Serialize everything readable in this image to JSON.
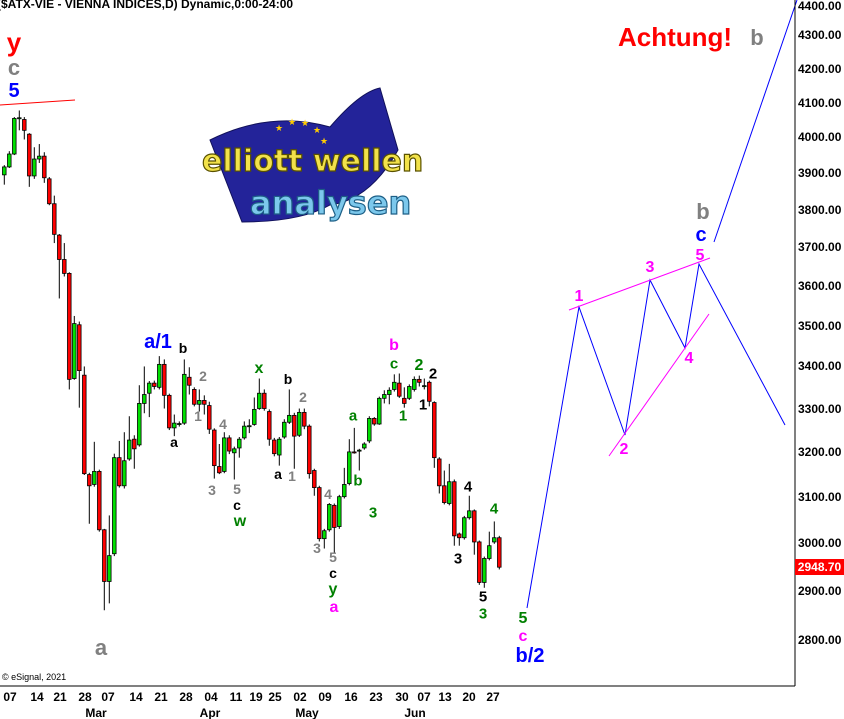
{
  "header": {
    "title": "($ATX-VIE - VIENNA INDICES,D) Dynamic,0:00-24:00"
  },
  "footer": {
    "copyright": "© eSignal, 2021"
  },
  "logo": {
    "line1": "elliott wellen",
    "line2": "analysen"
  },
  "chart_data": {
    "type": "candlestick",
    "title": "($ATX-VIE - VIENNA INDICES,D) Dynamic,0:00-24:00",
    "yscale": "log",
    "ylim": [
      2720,
      4400
    ],
    "grid": false,
    "y_ticks": [
      "4400.00",
      "4300.00",
      "4200.00",
      "4100.00",
      "4000.00",
      "3900.00",
      "3800.00",
      "3700.00",
      "3600.00",
      "3500.00",
      "3400.00",
      "3300.00",
      "3200.00",
      "3100.00",
      "3000.00",
      "2900.00",
      "2800.00"
    ],
    "x_ticks": [
      "07",
      "14",
      "21",
      "28",
      "07",
      "14",
      "21",
      "28",
      "04",
      "11",
      "19",
      "25",
      "02",
      "09",
      "16",
      "23",
      "30",
      "07",
      "13",
      "20",
      "27"
    ],
    "months": [
      "Mar",
      "Apr",
      "May",
      "Jun"
    ],
    "last_price": "2948.70",
    "colors": {
      "up": "#00e000",
      "down": "#ff0000",
      "projection": "#0000ff",
      "channel": "#ff00ff",
      "trendline": "#ff0000",
      "last_price_bg": "#ff0000"
    },
    "candles_ohlc": [
      [
        3895,
        3922,
        3868,
        3917
      ],
      [
        3917,
        3961,
        3914,
        3953
      ],
      [
        3953,
        4058,
        3950,
        4054
      ],
      [
        4054,
        4077,
        4020,
        4056
      ],
      [
        4051,
        4058,
        3994,
        4020
      ],
      [
        4009,
        4012,
        3862,
        3892
      ],
      [
        3892,
        3972,
        3884,
        3939
      ],
      [
        3939,
        3981,
        3928,
        3947
      ],
      [
        3947,
        3958,
        3873,
        3887
      ],
      [
        3884,
        3889,
        3812,
        3816
      ],
      [
        3816,
        3838,
        3711,
        3734
      ],
      [
        3732,
        3735,
        3568,
        3668
      ],
      [
        3668,
        3711,
        3624,
        3632
      ],
      [
        3632,
        3635,
        3345,
        3369
      ],
      [
        3371,
        3524,
        3368,
        3505
      ],
      [
        3502,
        3510,
        3302,
        3390
      ],
      [
        3379,
        3400,
        3148,
        3151
      ],
      [
        3149,
        3153,
        3041,
        3124
      ],
      [
        3127,
        3223,
        3122,
        3156
      ],
      [
        3156,
        3160,
        3024,
        3028
      ],
      [
        3028,
        3030,
        2860,
        2919
      ],
      [
        2919,
        3059,
        2874,
        2973
      ],
      [
        2977,
        3196,
        2972,
        3187
      ],
      [
        3187,
        3225,
        3120,
        3124
      ],
      [
        3124,
        3245,
        3118,
        3180
      ],
      [
        3184,
        3282,
        3180,
        3227
      ],
      [
        3229,
        3238,
        3162,
        3207
      ],
      [
        3216,
        3355,
        3212,
        3312
      ],
      [
        3312,
        3400,
        3289,
        3333
      ],
      [
        3336,
        3365,
        3280,
        3360
      ],
      [
        3360,
        3366,
        3345,
        3352
      ],
      [
        3350,
        3425,
        3345,
        3405
      ],
      [
        3405,
        3417,
        3300,
        3331
      ],
      [
        3331,
        3335,
        3250,
        3255
      ],
      [
        3255,
        3286,
        3236,
        3266
      ],
      [
        3264,
        3270,
        3258,
        3265
      ],
      [
        3266,
        3417,
        3262,
        3381
      ],
      [
        3374,
        3398,
        3333,
        3355
      ],
      [
        3345,
        3350,
        3305,
        3310
      ],
      [
        3310,
        3345,
        3293,
        3319
      ],
      [
        3319,
        3331,
        3286,
        3310
      ],
      [
        3307,
        3316,
        3241,
        3252
      ],
      [
        3250,
        3254,
        3140,
        3169
      ],
      [
        3167,
        3218,
        3150,
        3153
      ],
      [
        3156,
        3245,
        3152,
        3232
      ],
      [
        3232,
        3238,
        3195,
        3202
      ],
      [
        3198,
        3212,
        3138,
        3207
      ],
      [
        3209,
        3234,
        3187,
        3229
      ],
      [
        3232,
        3270,
        3228,
        3259
      ],
      [
        3259,
        3275,
        3243,
        3260
      ],
      [
        3263,
        3326,
        3260,
        3298
      ],
      [
        3300,
        3371,
        3297,
        3336
      ],
      [
        3336,
        3345,
        3295,
        3300
      ],
      [
        3293,
        3298,
        3214,
        3229
      ],
      [
        3227,
        3232,
        3190,
        3196
      ],
      [
        3193,
        3234,
        3169,
        3229
      ],
      [
        3234,
        3275,
        3230,
        3268
      ],
      [
        3268,
        3345,
        3264,
        3284
      ],
      [
        3284,
        3290,
        3162,
        3236
      ],
      [
        3238,
        3300,
        3234,
        3291
      ],
      [
        3291,
        3300,
        3252,
        3259
      ],
      [
        3259,
        3263,
        3140,
        3151
      ],
      [
        3158,
        3162,
        3102,
        3120
      ],
      [
        3120,
        3124,
        3003,
        3009
      ],
      [
        3009,
        3030,
        2988,
        3026
      ],
      [
        3028,
        3086,
        3024,
        3083
      ],
      [
        3081,
        3085,
        2979,
        3033
      ],
      [
        3035,
        3104,
        3030,
        3100
      ],
      [
        3100,
        3164,
        3096,
        3127
      ],
      [
        3129,
        3229,
        3125,
        3200
      ],
      [
        3200,
        3255,
        3196,
        3199
      ],
      [
        3202,
        3207,
        3158,
        3204
      ],
      [
        3209,
        3222,
        3205,
        3218
      ],
      [
        3225,
        3282,
        3220,
        3277
      ],
      [
        3277,
        3280,
        3260,
        3264
      ],
      [
        3264,
        3328,
        3262,
        3324
      ],
      [
        3324,
        3343,
        3312,
        3333
      ],
      [
        3333,
        3350,
        3310,
        3343
      ],
      [
        3345,
        3381,
        3340,
        3362
      ],
      [
        3360,
        3383,
        3325,
        3329
      ],
      [
        3324,
        3350,
        3302,
        3312
      ],
      [
        3324,
        3357,
        3320,
        3352
      ],
      [
        3345,
        3376,
        3340,
        3369
      ],
      [
        3369,
        3378,
        3352,
        3362
      ],
      [
        3352,
        3371,
        3345,
        3354
      ],
      [
        3362,
        3366,
        3305,
        3317
      ],
      [
        3314,
        3317,
        3164,
        3187
      ],
      [
        3184,
        3188,
        3107,
        3124
      ],
      [
        3124,
        3158,
        3083,
        3087
      ],
      [
        3085,
        3173,
        3081,
        3133
      ],
      [
        3133,
        3138,
        2994,
        3015
      ],
      [
        3019,
        3022,
        2994,
        3011
      ],
      [
        3011,
        3058,
        3007,
        3054
      ],
      [
        3054,
        3102,
        3050,
        3069
      ],
      [
        3069,
        3072,
        2975,
        3002
      ],
      [
        3002,
        3005,
        2912,
        2917
      ],
      [
        2917,
        2971,
        2906,
        2967
      ],
      [
        2967,
        3024,
        2963,
        2994
      ],
      [
        3002,
        3046,
        2998,
        3011
      ],
      [
        3011,
        3015,
        2944,
        2948.7
      ]
    ],
    "annotations": [
      {
        "text": "y",
        "color": "#ff0000"
      },
      {
        "text": "c",
        "color": "#808080"
      },
      {
        "text": "5",
        "color": "#0000ff"
      },
      {
        "text": "a",
        "color": "#808080"
      },
      {
        "text": "a/1",
        "color": "#0000ff"
      },
      {
        "text": "b",
        "color": "#000000"
      },
      {
        "text": "a",
        "color": "#000000"
      },
      {
        "text": "2",
        "color": "#808080"
      },
      {
        "text": "1",
        "color": "#808080"
      },
      {
        "text": "4",
        "color": "#808080"
      },
      {
        "text": "3",
        "color": "#808080"
      },
      {
        "text": "5",
        "color": "#808080"
      },
      {
        "text": "c",
        "color": "#000000"
      },
      {
        "text": "w",
        "color": "#008000"
      },
      {
        "text": "x",
        "color": "#008000"
      },
      {
        "text": "b",
        "color": "#000000"
      },
      {
        "text": "2",
        "color": "#808080"
      },
      {
        "text": "a",
        "color": "#000000"
      },
      {
        "text": "1",
        "color": "#808080"
      },
      {
        "text": "4",
        "color": "#808080"
      },
      {
        "text": "3",
        "color": "#808080"
      },
      {
        "text": "5",
        "color": "#808080"
      },
      {
        "text": "c",
        "color": "#000000"
      },
      {
        "text": "y",
        "color": "#008000"
      },
      {
        "text": "a",
        "color": "#ff00ff"
      },
      {
        "text": "a",
        "color": "#008000"
      },
      {
        "text": "b",
        "color": "#008000"
      },
      {
        "text": "3",
        "color": "#008000"
      },
      {
        "text": "b",
        "color": "#ff00ff"
      },
      {
        "text": "c",
        "color": "#008000"
      },
      {
        "text": "1",
        "color": "#008000"
      },
      {
        "text": "2",
        "color": "#008000"
      },
      {
        "text": "2",
        "color": "#000000"
      },
      {
        "text": "1",
        "color": "#000000"
      },
      {
        "text": "4",
        "color": "#000000"
      },
      {
        "text": "3",
        "color": "#000000"
      },
      {
        "text": "4",
        "color": "#008000"
      },
      {
        "text": "5",
        "color": "#000000"
      },
      {
        "text": "3",
        "color": "#008000"
      },
      {
        "text": "5",
        "color": "#008000"
      },
      {
        "text": "c",
        "color": "#ff00ff"
      },
      {
        "text": "b/2",
        "color": "#0000ff"
      },
      {
        "text": "1",
        "color": "#ff00ff"
      },
      {
        "text": "2",
        "color": "#ff00ff"
      },
      {
        "text": "3",
        "color": "#ff00ff"
      },
      {
        "text": "4",
        "color": "#ff00ff"
      },
      {
        "text": "5",
        "color": "#ff00ff"
      },
      {
        "text": "c",
        "color": "#0000ff"
      },
      {
        "text": "b",
        "color": "#808080"
      },
      {
        "text": "Achtung!",
        "color": "#ff0000"
      },
      {
        "text": "b",
        "color": "#808080"
      }
    ]
  }
}
